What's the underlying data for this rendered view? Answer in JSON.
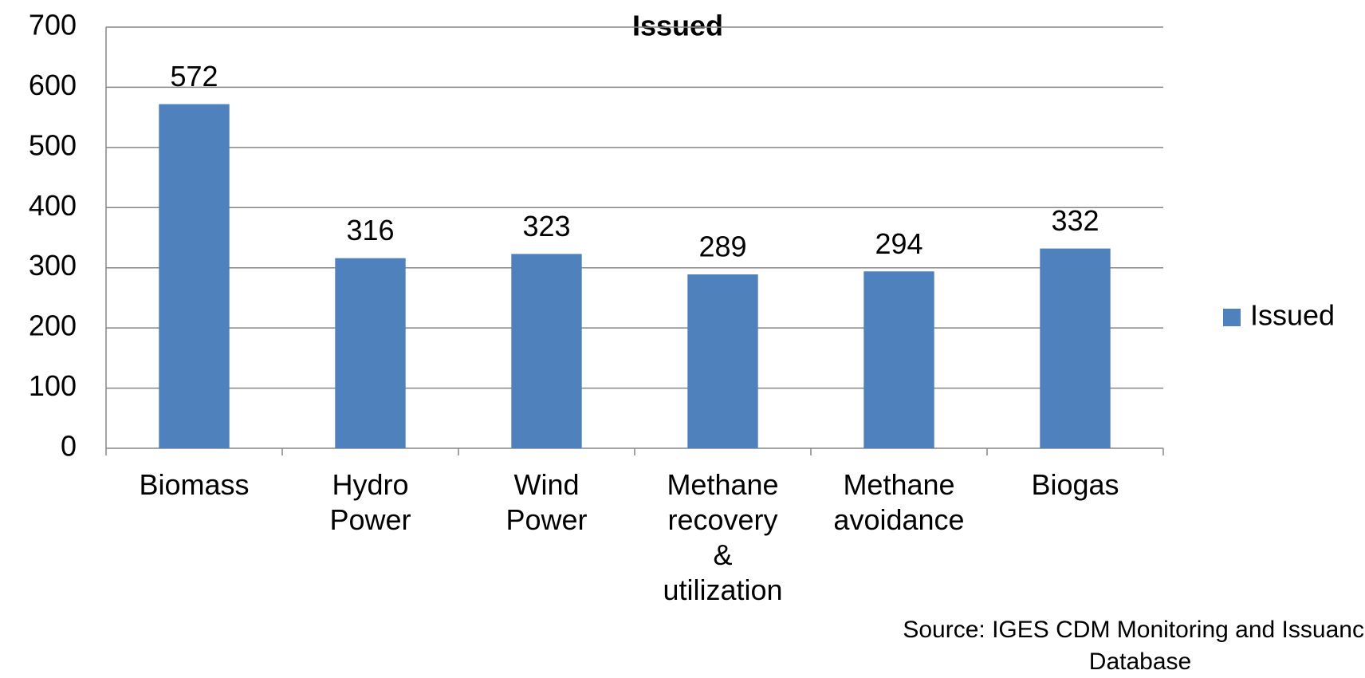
{
  "chart_data": {
    "type": "bar",
    "title": "Issued",
    "categories": [
      "Biomass",
      "Hydro Power",
      "Wind Power",
      "Methane recovery & utilization",
      "Methane avoidance",
      "Biogas"
    ],
    "series": [
      {
        "name": "Issued",
        "color": "#4f81bd",
        "values": [
          572,
          316,
          323,
          289,
          294,
          332
        ]
      }
    ],
    "ylim": [
      0,
      700
    ],
    "yticks": [
      0,
      100,
      200,
      300,
      400,
      500,
      600,
      700
    ],
    "grid": true,
    "legend": "right",
    "source": "Source: IGES CDM Monitoring and Issuance Database"
  }
}
